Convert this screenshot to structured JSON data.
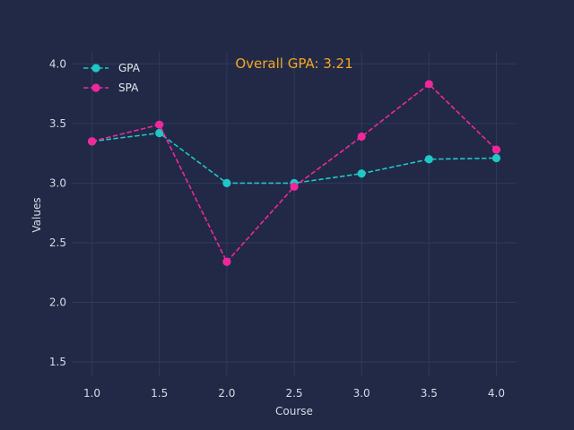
{
  "chart_data": {
    "type": "line",
    "title": "",
    "xlabel": "Course",
    "ylabel": "Values",
    "xlim": [
      0.85,
      4.15
    ],
    "ylim": [
      1.38,
      4.1
    ],
    "xticks": [
      1.0,
      1.5,
      2.0,
      2.5,
      3.0,
      3.5,
      4.0
    ],
    "xtick_labels": [
      "1.0",
      "1.5",
      "2.0",
      "2.5",
      "3.0",
      "3.5",
      "4.0"
    ],
    "yticks": [
      1.5,
      2.0,
      2.5,
      3.0,
      3.5,
      4.0
    ],
    "ytick_labels": [
      "1.5",
      "2.0",
      "2.5",
      "3.0",
      "3.5",
      "4.0"
    ],
    "grid": true,
    "legend_position": "top-left",
    "annotation": {
      "text": "Overall GPA: 3.21",
      "color": "#f5a623"
    },
    "x": [
      1.0,
      1.5,
      2.0,
      2.5,
      3.0,
      3.5,
      4.0
    ],
    "series": [
      {
        "name": "GPA",
        "color": "#1fc7c6",
        "values": [
          3.35,
          3.42,
          3.0,
          3.0,
          3.08,
          3.2,
          3.21
        ]
      },
      {
        "name": "SPA",
        "color": "#f0289c",
        "values": [
          3.35,
          3.49,
          2.34,
          2.97,
          3.39,
          3.83,
          3.28
        ]
      }
    ],
    "colors": {
      "background": "#212946",
      "grid": "#2e3a5c",
      "text": "#d7dbe6"
    }
  }
}
